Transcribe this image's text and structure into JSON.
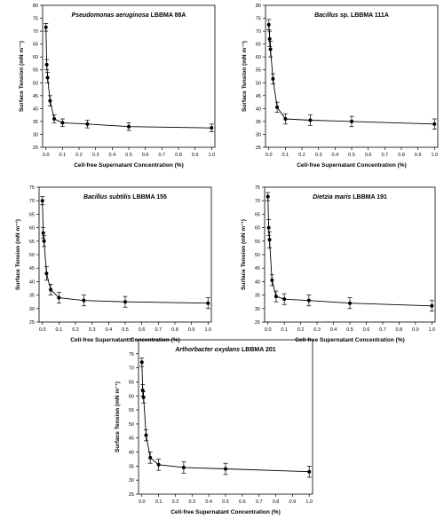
{
  "chart_data": [
    {
      "type": "scatter",
      "title_italic": "Pseudomonas aeruginosa",
      "title_rest": "LBBMA 88A",
      "xlabel": "Cell-free Supernatant Concentration (%)",
      "ylabel": "Surface Tension (mN m⁻¹)",
      "xlim": [
        -0.02,
        1.02
      ],
      "ylim": [
        25,
        80
      ],
      "xticks": [
        "0.0",
        "0.1",
        "0.2",
        "0.3",
        "0.4",
        "0.5",
        "0.6",
        "0.7",
        "0.8",
        "0.9",
        "1.0"
      ],
      "yticks": [
        "25",
        "30",
        "35",
        "40",
        "45",
        "50",
        "55",
        "60",
        "65",
        "70",
        "75",
        "80"
      ],
      "x": [
        0,
        0.005,
        0.01,
        0.025,
        0.05,
        0.1,
        0.25,
        0.5,
        1.0
      ],
      "y": [
        71.5,
        57,
        52,
        43,
        36,
        34.5,
        34,
        33,
        32.5
      ],
      "err": [
        1.5,
        2,
        2,
        2,
        1.5,
        1.5,
        1.5,
        1.5,
        1.5
      ]
    },
    {
      "type": "scatter",
      "title_italic": "Bacillus",
      "title_rest": "sp. LBBMA 111A",
      "xlabel": "Cell-free Supernatant Concentration (%)",
      "ylabel": "Surface Tension (mN m⁻¹)",
      "xlim": [
        -0.02,
        1.02
      ],
      "ylim": [
        25,
        80
      ],
      "xticks": [
        "0.0",
        "0.1",
        "0.2",
        "0.3",
        "0.4",
        "0.5",
        "0.6",
        "0.7",
        "0.8",
        "0.9",
        "1.0"
      ],
      "yticks": [
        "25",
        "30",
        "35",
        "40",
        "45",
        "50",
        "55",
        "60",
        "65",
        "70",
        "75",
        "80"
      ],
      "x": [
        0,
        0.005,
        0.01,
        0.025,
        0.05,
        0.1,
        0.25,
        0.5,
        1.0
      ],
      "y": [
        72.5,
        67,
        63,
        51.5,
        40.5,
        36,
        35.5,
        35,
        34
      ],
      "err": [
        2,
        3,
        3,
        2,
        2,
        2,
        2,
        2,
        2
      ]
    },
    {
      "type": "scatter",
      "title_italic": "Bacillus subtilis",
      "title_rest": "LBBMA 155",
      "xlabel": "Cell-free Supernatant Concentration (%)",
      "ylabel": "Surface Tension (mN m⁻¹)",
      "xlim": [
        -0.02,
        1.02
      ],
      "ylim": [
        25,
        75
      ],
      "xticks": [
        "0.0",
        "0.1",
        "0.2",
        "0.3",
        "0.4",
        "0.5",
        "0.6",
        "0.7",
        "0.8",
        "0.9",
        "1.0"
      ],
      "yticks": [
        "25",
        "30",
        "35",
        "40",
        "45",
        "50",
        "55",
        "60",
        "65",
        "70",
        "75"
      ],
      "x": [
        0,
        0.005,
        0.01,
        0.025,
        0.05,
        0.1,
        0.25,
        0.5,
        1.0
      ],
      "y": [
        70,
        58,
        55,
        43,
        37,
        34,
        33,
        32.5,
        32
      ],
      "err": [
        1.5,
        2,
        2,
        2.5,
        2,
        2,
        2,
        2,
        2
      ]
    },
    {
      "type": "scatter",
      "title_italic": "Dietzia maris",
      "title_rest": "LBBMA 191",
      "xlabel": "Cell-free Supernatant Concentration (%)",
      "ylabel": "Surface Tension (mN m⁻¹)",
      "xlim": [
        -0.02,
        1.02
      ],
      "ylim": [
        25,
        75
      ],
      "xticks": [
        "0.0",
        "0.1",
        "0.2",
        "0.3",
        "0.4",
        "0.5",
        "0.6",
        "0.7",
        "0.8",
        "0.9",
        "1.0"
      ],
      "yticks": [
        "25",
        "30",
        "35",
        "40",
        "45",
        "50",
        "55",
        "60",
        "65",
        "70",
        "75"
      ],
      "x": [
        0,
        0.005,
        0.01,
        0.025,
        0.05,
        0.1,
        0.25,
        0.5,
        1.0
      ],
      "y": [
        71.5,
        60,
        55.5,
        40.5,
        34.5,
        33.5,
        33,
        32,
        31
      ],
      "err": [
        1.5,
        3,
        3,
        2,
        2,
        2,
        2,
        2,
        2
      ]
    },
    {
      "type": "scatter",
      "title_italic": "Arthorbacter oxydans",
      "title_rest": "LBBMA 201",
      "xlabel": "Cell-free Supernatant Concentration (%)",
      "ylabel": "Surface Tension (mN m⁻¹)",
      "xlim": [
        -0.02,
        1.02
      ],
      "ylim": [
        25,
        80
      ],
      "xticks": [
        "0.0",
        "0.1",
        "0.2",
        "0.3",
        "0.4",
        "0.5",
        "0.6",
        "0.7",
        "0.8",
        "0.9",
        "1.0"
      ],
      "yticks": [
        "25",
        "30",
        "35",
        "40",
        "45",
        "50",
        "55",
        "60",
        "65",
        "70",
        "75",
        "80"
      ],
      "x": [
        0,
        0.005,
        0.01,
        0.025,
        0.05,
        0.1,
        0.25,
        0.5,
        1.0
      ],
      "y": [
        72,
        62,
        59.5,
        46,
        38,
        35.5,
        34.5,
        34,
        33
      ],
      "err": [
        1.5,
        2,
        2,
        2,
        2,
        2,
        2,
        2,
        2
      ]
    }
  ]
}
